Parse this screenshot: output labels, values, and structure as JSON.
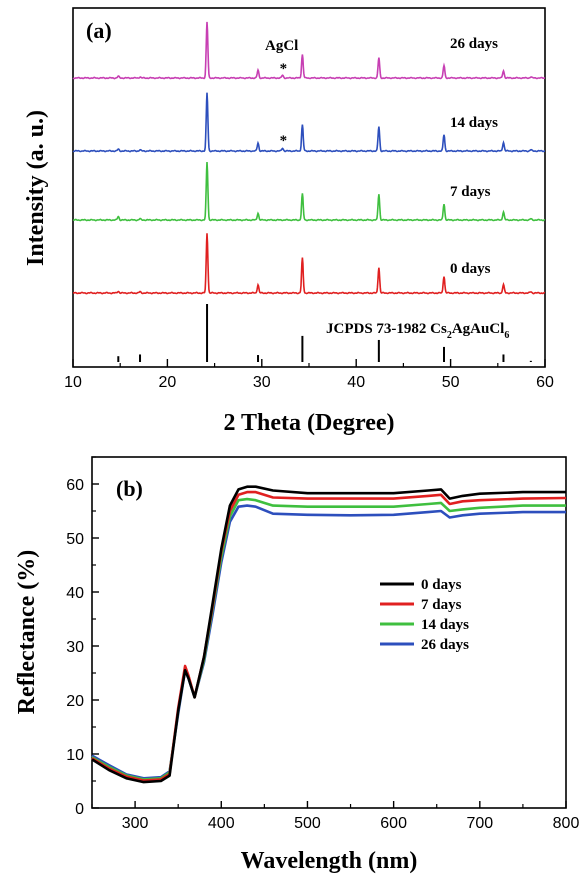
{
  "chart_data": [
    {
      "type": "line",
      "panel_label": "(a)",
      "xlabel": "2 Theta (Degree)",
      "ylabel": "Intensity (a. u.)",
      "xlim": [
        10,
        60
      ],
      "xticks": [
        10,
        20,
        30,
        40,
        50,
        60
      ],
      "yticks_shown": false,
      "annotations": [
        {
          "text": "AgCl",
          "x": 32.2,
          "series": "26 days"
        },
        {
          "text": "*",
          "x": 32.2,
          "series": "26 days"
        },
        {
          "text": "*",
          "x": 32.2,
          "series": "14 days"
        }
      ],
      "series": [
        {
          "name": "26 days",
          "color": "#c73fb3",
          "peaks": [
            [
              14.8,
              0.03
            ],
            [
              17.1,
              0.02
            ],
            [
              24.2,
              1.0
            ],
            [
              29.6,
              0.14
            ],
            [
              32.2,
              0.05
            ],
            [
              34.3,
              0.42
            ],
            [
              42.4,
              0.36
            ],
            [
              49.3,
              0.22
            ],
            [
              55.6,
              0.13
            ],
            [
              58.5,
              0.02
            ]
          ]
        },
        {
          "name": "14 days",
          "color": "#2d4fbd",
          "peaks": [
            [
              14.8,
              0.03
            ],
            [
              17.1,
              0.02
            ],
            [
              24.2,
              1.0
            ],
            [
              29.6,
              0.14
            ],
            [
              32.2,
              0.05
            ],
            [
              34.3,
              0.45
            ],
            [
              42.4,
              0.42
            ],
            [
              49.3,
              0.28
            ],
            [
              55.6,
              0.15
            ],
            [
              58.5,
              0.02
            ]
          ]
        },
        {
          "name": "7 days",
          "color": "#3fbf3f",
          "peaks": [
            [
              14.8,
              0.06
            ],
            [
              17.1,
              0.02
            ],
            [
              24.2,
              1.0
            ],
            [
              29.6,
              0.12
            ],
            [
              34.3,
              0.45
            ],
            [
              42.4,
              0.45
            ],
            [
              49.3,
              0.28
            ],
            [
              55.6,
              0.14
            ],
            [
              58.5,
              0.02
            ]
          ]
        },
        {
          "name": "0 days",
          "color": "#e02020",
          "peaks": [
            [
              14.8,
              0.03
            ],
            [
              17.1,
              0.02
            ],
            [
              24.2,
              1.0
            ],
            [
              29.6,
              0.14
            ],
            [
              34.3,
              0.58
            ],
            [
              42.4,
              0.43
            ],
            [
              49.3,
              0.28
            ],
            [
              55.6,
              0.14
            ],
            [
              58.5,
              0.02
            ]
          ]
        }
      ],
      "reference": {
        "label": "JCPDS 73-1982 Cs",
        "label_sub1": "2",
        "label_mid": "AgAuCl",
        "label_sub2": "6",
        "color": "#000000",
        "sticks": [
          [
            14.8,
            0.1
          ],
          [
            17.1,
            0.13
          ],
          [
            24.2,
            1.0
          ],
          [
            29.6,
            0.12
          ],
          [
            34.3,
            0.45
          ],
          [
            42.4,
            0.38
          ],
          [
            49.3,
            0.26
          ],
          [
            55.6,
            0.13
          ],
          [
            58.5,
            0.02
          ]
        ]
      }
    },
    {
      "type": "line",
      "panel_label": "(b)",
      "xlabel": "Wavelength (nm)",
      "ylabel": "Reflectance (%)",
      "xlim": [
        250,
        800
      ],
      "ylim": [
        0,
        65
      ],
      "xticks": [
        300,
        400,
        500,
        600,
        700,
        800
      ],
      "yticks": [
        0,
        10,
        20,
        30,
        40,
        50,
        60
      ],
      "legend_position": "center-right",
      "series": [
        {
          "name": "0 days",
          "color": "#000000",
          "x": [
            250,
            270,
            290,
            310,
            330,
            340,
            350,
            358,
            362,
            369,
            380,
            390,
            400,
            410,
            420,
            430,
            440,
            460,
            500,
            550,
            600,
            640,
            655,
            665,
            680,
            700,
            750,
            800
          ],
          "y": [
            9.0,
            7.0,
            5.5,
            4.8,
            5.0,
            6.0,
            18.0,
            25.5,
            24.0,
            20.5,
            28.0,
            38.0,
            48.0,
            56.0,
            59.0,
            59.5,
            59.5,
            58.8,
            58.3,
            58.3,
            58.3,
            58.8,
            59.0,
            57.3,
            57.8,
            58.2,
            58.5,
            58.5
          ]
        },
        {
          "name": "7 days",
          "color": "#e02020",
          "x": [
            250,
            270,
            290,
            310,
            330,
            340,
            350,
            358,
            362,
            369,
            380,
            390,
            400,
            410,
            420,
            430,
            440,
            460,
            500,
            550,
            600,
            640,
            655,
            665,
            680,
            700,
            750,
            800
          ],
          "y": [
            9.2,
            7.3,
            5.8,
            5.1,
            5.3,
            6.3,
            18.5,
            26.3,
            24.5,
            20.5,
            28.0,
            37.5,
            47.5,
            55.0,
            58.0,
            58.5,
            58.5,
            57.5,
            57.3,
            57.3,
            57.3,
            57.8,
            58.0,
            56.3,
            56.8,
            57.0,
            57.3,
            57.4
          ]
        },
        {
          "name": "14 days",
          "color": "#3fbf3f",
          "x": [
            250,
            270,
            290,
            310,
            330,
            340,
            350,
            358,
            362,
            369,
            380,
            390,
            400,
            410,
            420,
            430,
            440,
            460,
            500,
            550,
            600,
            640,
            655,
            665,
            680,
            700,
            750,
            800
          ],
          "y": [
            9.4,
            7.6,
            6.0,
            5.3,
            5.5,
            6.6,
            18.0,
            25.8,
            24.3,
            20.5,
            27.5,
            37.0,
            46.5,
            54.0,
            57.0,
            57.2,
            57.0,
            56.0,
            55.8,
            55.8,
            55.8,
            56.3,
            56.5,
            55.0,
            55.3,
            55.6,
            56.0,
            56.0
          ]
        },
        {
          "name": "26 days",
          "color": "#2d4fbd",
          "x": [
            250,
            270,
            290,
            310,
            330,
            340,
            350,
            358,
            362,
            369,
            380,
            390,
            400,
            410,
            420,
            430,
            440,
            460,
            500,
            550,
            600,
            640,
            655,
            665,
            680,
            700,
            750,
            800
          ],
          "y": [
            9.7,
            7.9,
            6.2,
            5.5,
            5.7,
            6.8,
            17.5,
            25.5,
            24.0,
            20.5,
            27.0,
            36.0,
            45.5,
            53.0,
            55.8,
            56.0,
            55.8,
            54.5,
            54.3,
            54.2,
            54.3,
            54.8,
            55.0,
            53.8,
            54.2,
            54.5,
            54.8,
            54.8
          ]
        }
      ]
    }
  ]
}
